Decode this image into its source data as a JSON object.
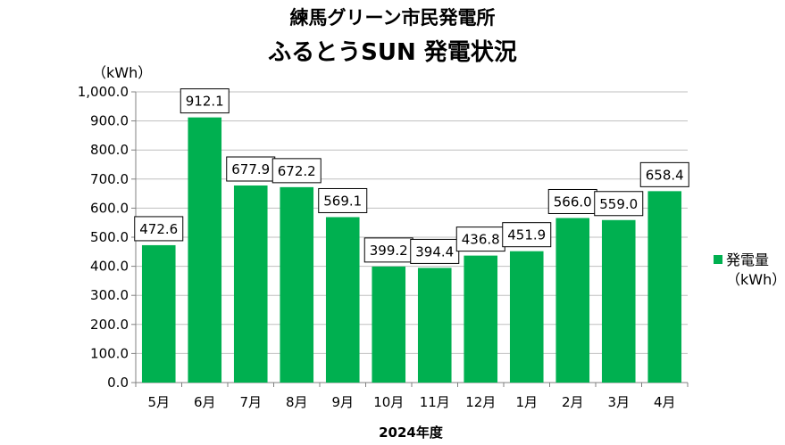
{
  "title": "練馬グリーン市民発電所",
  "subtitle": "ふるとうSUN 発電状況",
  "colors": {
    "bar": "#00b050",
    "grid": "#bfbfbf",
    "axis": "#808080"
  },
  "chart_data": {
    "type": "bar",
    "title": "ふるとうSUN 発電状況",
    "xlabel": "2024年度",
    "ylabel": "（kWh）",
    "ylim": [
      0,
      1000
    ],
    "ytick_step": 100,
    "ytick_labels": [
      "0.0",
      "100.0",
      "200.0",
      "300.0",
      "400.0",
      "500.0",
      "600.0",
      "700.0",
      "800.0",
      "900.0",
      "1,000.0"
    ],
    "grid": true,
    "legend_position": "right",
    "categories": [
      "5月",
      "6月",
      "7月",
      "8月",
      "9月",
      "10月",
      "11月",
      "12月",
      "1月",
      "2月",
      "3月",
      "4月"
    ],
    "series": [
      {
        "name": "発電量",
        "unit": "（kWh）",
        "values": [
          472.6,
          912.1,
          677.9,
          672.2,
          569.1,
          399.2,
          394.4,
          436.8,
          451.9,
          566.0,
          559.0,
          658.4
        ],
        "labels": [
          "472.6",
          "912.1",
          "677.9",
          "672.2",
          "569.1",
          "399.2",
          "394.4",
          "436.8",
          "451.9",
          "566.0",
          "559.0",
          "658.4"
        ]
      }
    ]
  }
}
